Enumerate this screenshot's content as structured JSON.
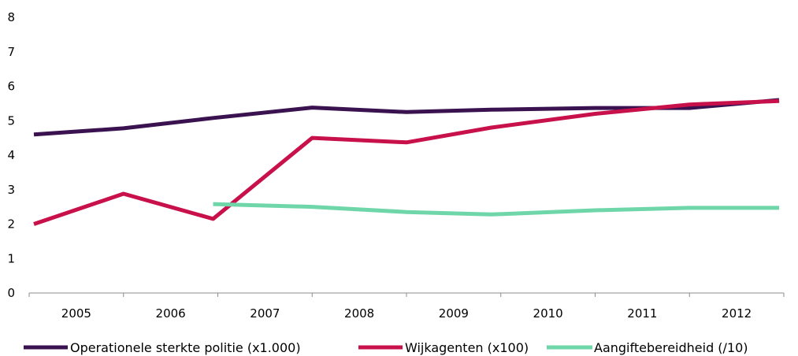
{
  "chart_data": {
    "type": "line",
    "categories": [
      "2005",
      "2006",
      "2007",
      "2008",
      "2009",
      "2010",
      "2011",
      "2012"
    ],
    "x": [
      2004.55,
      2005.5,
      2006.45,
      2007.5,
      2008.5,
      2009.4,
      2010.5,
      2011.5,
      2012.45
    ],
    "ylim": [
      0,
      8
    ],
    "yticks": [
      0,
      1,
      2,
      3,
      4,
      5,
      6,
      7,
      8
    ],
    "grid": false,
    "legend": "bottom",
    "series": [
      {
        "name": "Operationele sterkte politie (x1.000)",
        "color": "#3b1250",
        "values": [
          4.6,
          4.78,
          5.08,
          5.38,
          5.25,
          5.32,
          5.37,
          5.37,
          5.6
        ]
      },
      {
        "name": "Wijkagenten (x100)",
        "color": "#c8104b",
        "values": [
          2.0,
          2.88,
          2.15,
          4.5,
          4.37,
          4.8,
          5.2,
          5.47,
          5.57
        ]
      },
      {
        "name": "Aangiftebereidheid (/10)",
        "color": "#6fd6aa",
        "values": [
          null,
          null,
          2.58,
          2.5,
          2.35,
          2.28,
          2.4,
          2.47,
          2.47
        ]
      }
    ]
  }
}
